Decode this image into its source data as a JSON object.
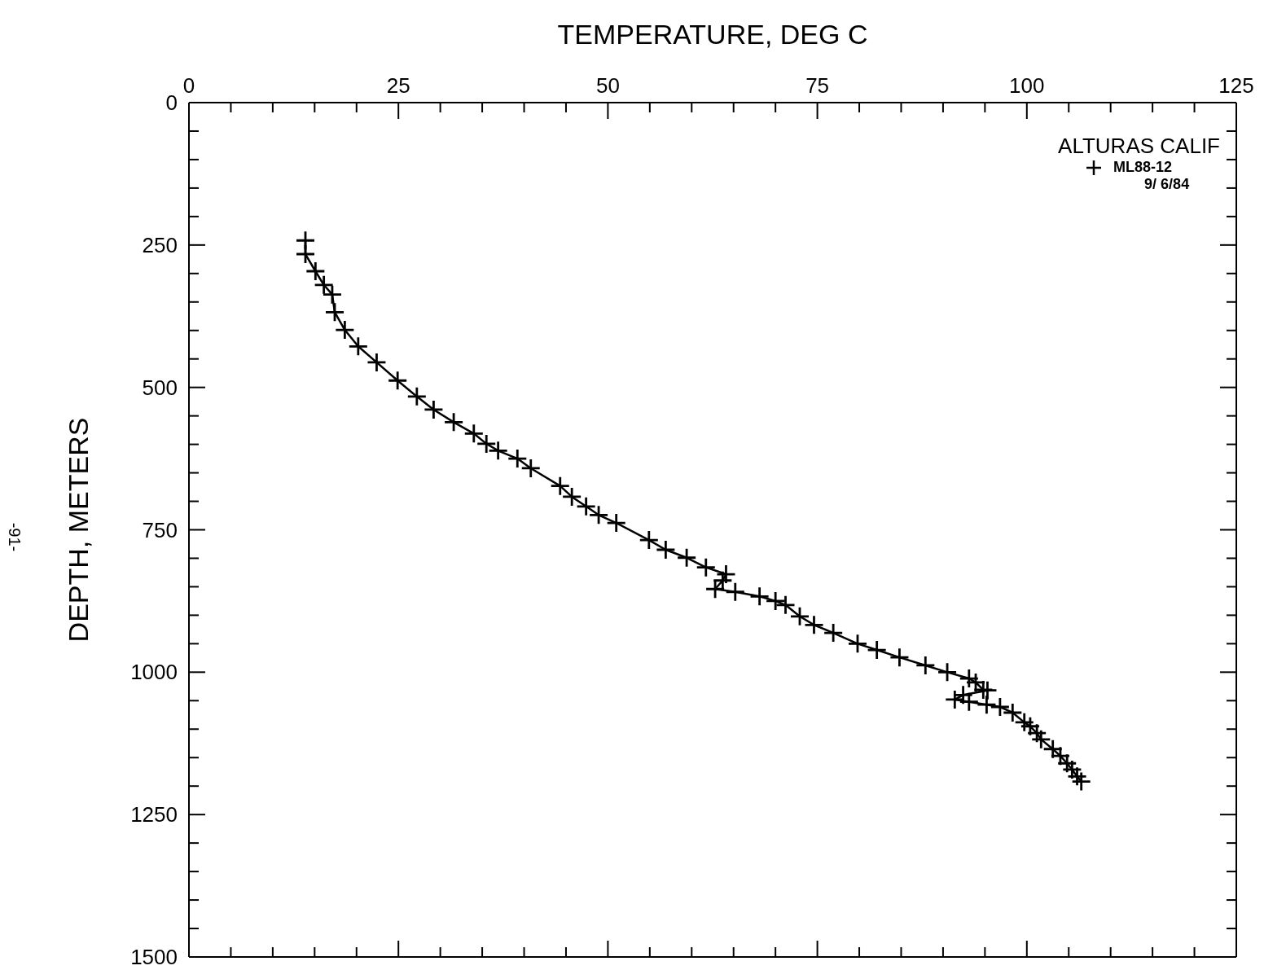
{
  "chart_data": {
    "type": "line",
    "xlabel": "TEMPERATURE, DEG C",
    "ylabel": "DEPTH, METERS",
    "legend_title": "ALTURAS CALIF",
    "legend": "top right",
    "marker": "cross",
    "line_style": "solid",
    "xlim": [
      0,
      125
    ],
    "xticks": [
      0,
      {
        "value": 5,
        "label": null
      },
      {
        "value": 10,
        "label": null
      },
      {
        "value": 15,
        "label": null
      },
      {
        "value": 20,
        "label": null
      },
      25,
      {
        "value": 30,
        "label": null
      },
      {
        "value": 35,
        "label": null
      },
      {
        "value": 40,
        "label": null
      },
      {
        "value": 45,
        "label": null
      },
      50,
      {
        "value": 55,
        "label": null
      },
      {
        "value": 60,
        "label": null
      },
      {
        "value": 65,
        "label": null
      },
      {
        "value": 70,
        "label": null
      },
      75,
      {
        "value": 80,
        "label": null
      },
      {
        "value": 85,
        "label": null
      },
      {
        "value": 90,
        "label": null
      },
      {
        "value": 95,
        "label": null
      },
      100,
      {
        "value": 105,
        "label": null
      },
      {
        "value": 110,
        "label": null
      },
      {
        "value": 115,
        "label": null
      },
      {
        "value": 120,
        "label": null
      },
      125
    ],
    "ylim": [
      1500,
      0
    ],
    "yticks": [
      0,
      {
        "value": 50,
        "label": null
      },
      {
        "value": 100,
        "label": null
      },
      {
        "value": 150,
        "label": null
      },
      {
        "value": 200,
        "label": null
      },
      250,
      {
        "value": 300,
        "label": null
      },
      {
        "value": 350,
        "label": null
      },
      {
        "value": 400,
        "label": null
      },
      {
        "value": 450,
        "label": null
      },
      500,
      {
        "value": 550,
        "label": null
      },
      {
        "value": 600,
        "label": null
      },
      {
        "value": 650,
        "label": null
      },
      {
        "value": 700,
        "label": null
      },
      750,
      {
        "value": 800,
        "label": null
      },
      {
        "value": 850,
        "label": null
      },
      {
        "value": 900,
        "label": null
      },
      {
        "value": 950,
        "label": null
      },
      1000,
      {
        "value": 1050,
        "label": null
      },
      {
        "value": 1100,
        "label": null
      },
      {
        "value": 1150,
        "label": null
      },
      {
        "value": 1200,
        "label": null
      },
      1250,
      {
        "value": 1300,
        "label": null
      },
      {
        "value": 1350,
        "label": null
      },
      {
        "value": 1400,
        "label": null
      },
      {
        "value": 1450,
        "label": null
      },
      1500
    ],
    "annotations": [
      "9/ 6/84",
      "-91-"
    ],
    "series": [
      {
        "name": "ML88-12",
        "color": "#000000",
        "x": [
          13.9,
          13.9,
          15.1,
          16.1,
          17.1,
          17.4,
          18.6,
          20.2,
          22.4,
          24.9,
          27.2,
          29.2,
          31.6,
          34.0,
          35.5,
          36.9,
          39.2,
          40.8,
          44.3,
          45.7,
          47.4,
          48.9,
          51.0,
          54.9,
          56.9,
          59.4,
          61.7,
          64.1,
          63.7,
          62.8,
          65.2,
          68.1,
          70.0,
          71.2,
          72.9,
          74.6,
          76.9,
          79.8,
          82.1,
          84.8,
          87.9,
          90.5,
          93.1,
          93.9,
          94.8,
          95.3,
          92.4,
          91.4,
          93.1,
          95.2,
          96.8,
          98.3,
          99.7,
          100.4,
          101.2,
          101.7,
          103.1,
          104.0,
          104.8,
          105.4,
          106.0,
          106.5
        ],
        "values": [
          242,
          266,
          296,
          320,
          337,
          368,
          399,
          428,
          456,
          488,
          516,
          539,
          561,
          581,
          599,
          611,
          625,
          642,
          673,
          692,
          709,
          724,
          738,
          768,
          785,
          799,
          816,
          828,
          839,
          854,
          859,
          867,
          875,
          882,
          902,
          917,
          931,
          950,
          961,
          974,
          988,
          1000,
          1011,
          1018,
          1031,
          1032,
          1040,
          1048,
          1052,
          1057,
          1061,
          1071,
          1088,
          1095,
          1107,
          1118,
          1135,
          1147,
          1160,
          1171,
          1183,
          1192
        ]
      }
    ]
  }
}
